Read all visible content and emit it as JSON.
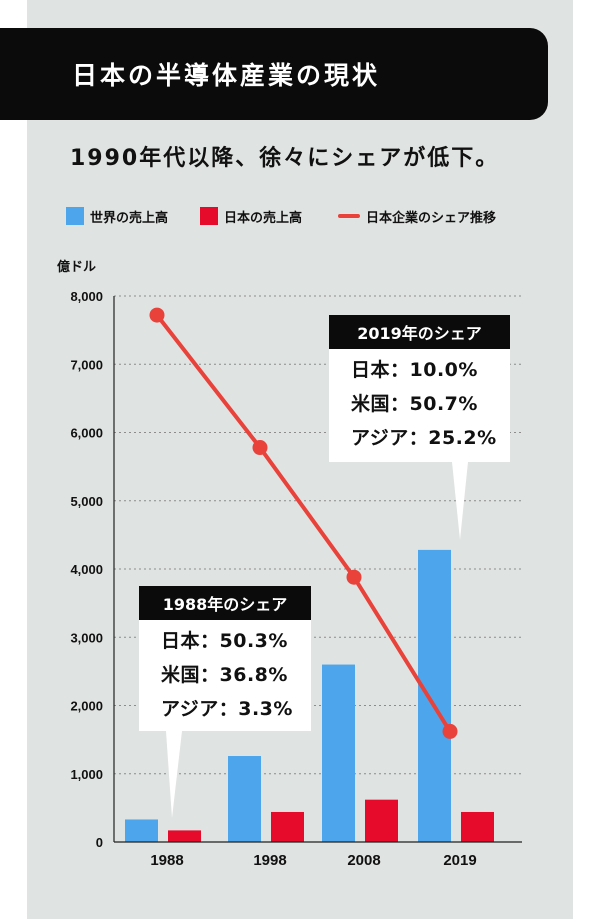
{
  "header": {
    "title": "日本の半導体産業の現状",
    "subtitle": "1990年代以降、徐々にシェアが低下。"
  },
  "legend": [
    {
      "label": "世界の売上高",
      "color": "#4da6ec",
      "kind": "box"
    },
    {
      "label": "日本の売上高",
      "color": "#e60b2b",
      "kind": "box"
    },
    {
      "label": "日本企業のシェア推移",
      "color": "#e8423a",
      "kind": "line"
    }
  ],
  "callouts": [
    {
      "title": "1988年のシェア",
      "lines": [
        "日本：50.3%",
        "米国：36.8%",
        "アジア：3.3%"
      ]
    },
    {
      "title": "2019年のシェア",
      "lines": [
        "日本：10.0%",
        "米国：50.7%",
        "アジア：25.2%"
      ]
    }
  ],
  "chart_data": {
    "type": "bar",
    "categories": [
      "1988",
      "1998",
      "2008",
      "2019"
    ],
    "ylabel": "億ドル",
    "ylim": [
      0,
      8000
    ],
    "yticks": [
      "0",
      "1,000",
      "2,000",
      "3,000",
      "4,000",
      "5,000",
      "6,000",
      "7,000",
      "8,000"
    ],
    "grid": true,
    "legend_position": "top",
    "series": [
      {
        "name": "世界の売上高",
        "type": "bar",
        "color": "#4da6ec",
        "values": [
          330,
          1260,
          2600,
          4280
        ]
      },
      {
        "name": "日本の売上高",
        "type": "bar",
        "color": "#e60b2b",
        "values": [
          170,
          440,
          620,
          440
        ]
      },
      {
        "name": "日本企業のシェア推移",
        "type": "line",
        "color": "#e8423a",
        "values": [
          7720,
          5780,
          3880,
          1620
        ]
      }
    ]
  }
}
